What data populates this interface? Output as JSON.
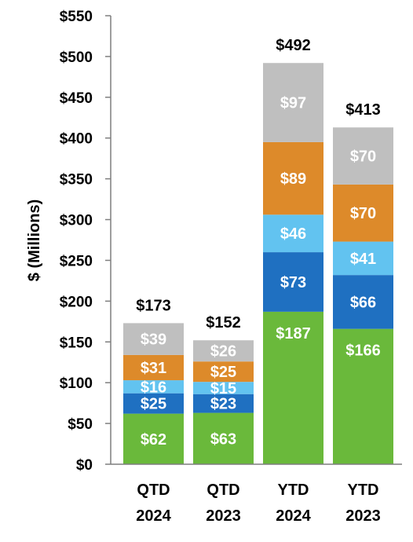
{
  "chart_data": {
    "type": "bar",
    "stacked": true,
    "ylabel": "$ (Millions)",
    "ylim": [
      0,
      550
    ],
    "ytick_step": 50,
    "tick_prefix": "$",
    "grid": false,
    "categories": [
      [
        "QTD",
        "2024"
      ],
      [
        "QTD",
        "2023"
      ],
      [
        "YTD",
        "2024"
      ],
      [
        "YTD",
        "2023"
      ]
    ],
    "series": [
      {
        "color": "#6ab93b",
        "values": [
          62,
          63,
          187,
          166
        ],
        "labels": [
          "$62",
          "$63",
          "$187",
          "$166"
        ]
      },
      {
        "color": "#1f70c1",
        "values": [
          25,
          23,
          73,
          66
        ],
        "labels": [
          "$25",
          "$23",
          "$73",
          "$66"
        ]
      },
      {
        "color": "#62c3f0",
        "values": [
          16,
          15,
          46,
          41
        ],
        "labels": [
          "$16",
          "$15",
          "$46",
          "$41"
        ]
      },
      {
        "color": "#dd8a2a",
        "values": [
          31,
          25,
          89,
          70
        ],
        "labels": [
          "$31",
          "$25",
          "$89",
          "$70"
        ]
      },
      {
        "color": "#bfbfbf",
        "values": [
          39,
          26,
          97,
          70
        ],
        "labels": [
          "$39",
          "$26",
          "$97",
          "$70"
        ]
      }
    ],
    "totals": [
      173,
      152,
      492,
      413
    ],
    "total_labels": [
      "$173",
      "$152",
      "$492",
      "$413"
    ]
  }
}
